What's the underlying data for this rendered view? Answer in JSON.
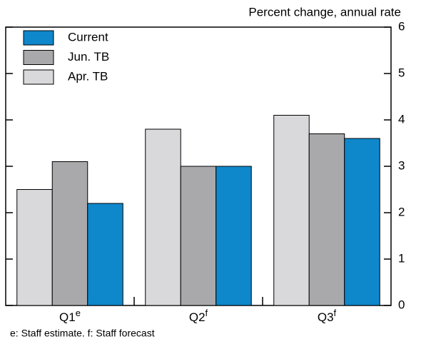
{
  "chart_data": {
    "type": "bar",
    "y_axis_label": "Percent change, annual rate",
    "footnote": "e: Staff estimate. f: Staff forecast",
    "categories": [
      "Q1",
      "Q2",
      "Q3"
    ],
    "category_notes": [
      "e",
      "f",
      "f"
    ],
    "series": [
      {
        "name": "Apr. TB",
        "color": "#d9d9db",
        "values": [
          2.5,
          3.8,
          4.1
        ]
      },
      {
        "name": "Jun. TB",
        "color": "#a9a9ac",
        "values": [
          3.1,
          3.0,
          3.7
        ]
      },
      {
        "name": "Current",
        "color": "#0f87cb",
        "values": [
          2.2,
          3.0,
          3.6
        ]
      }
    ],
    "ylim": [
      0,
      6
    ],
    "yticks": [
      0,
      1,
      2,
      3,
      4,
      5,
      6
    ],
    "grid": false,
    "legend": "upper left"
  }
}
